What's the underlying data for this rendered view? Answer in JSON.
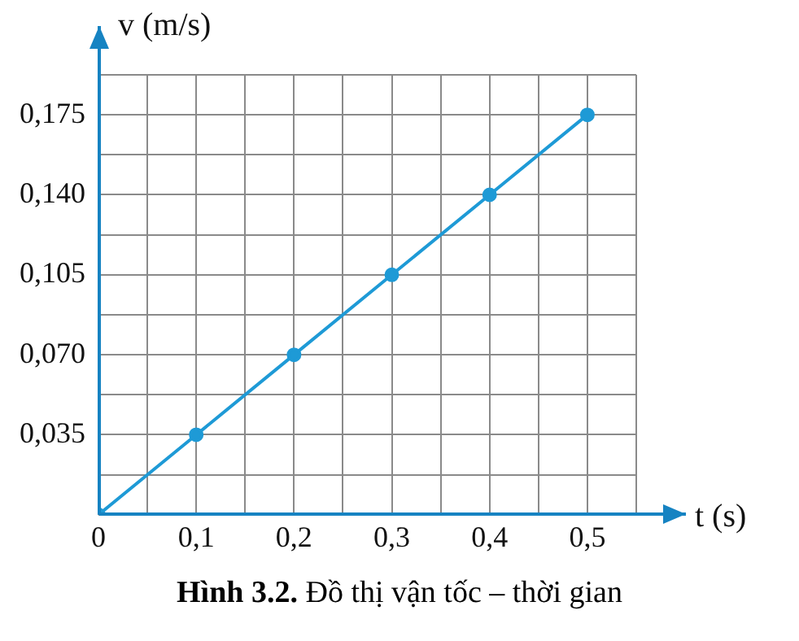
{
  "chart_data": {
    "type": "line",
    "title": "Hình 3.2. Đồ thị vận tốc – thời gian",
    "xlabel": "t (s)",
    "ylabel": "v (m/s)",
    "x": [
      0,
      0.1,
      0.2,
      0.3,
      0.4,
      0.5
    ],
    "series": [
      {
        "color": "#1e9ad6",
        "values": [
          0,
          0.035,
          0.07,
          0.105,
          0.14,
          0.175
        ]
      }
    ],
    "xlim": [
      0,
      0.55
    ],
    "ylim": [
      0,
      0.1925
    ],
    "xticks": [
      0,
      {
        "value": 0.05,
        "label": null
      },
      {
        "value": 0.1,
        "label": "0,1"
      },
      {
        "value": 0.15,
        "label": null
      },
      {
        "value": 0.2,
        "label": "0,2"
      },
      {
        "value": 0.25,
        "label": null
      },
      {
        "value": 0.3,
        "label": "0,3"
      },
      {
        "value": 0.35,
        "label": null
      },
      {
        "value": 0.4,
        "label": "0,4"
      },
      {
        "value": 0.45,
        "label": null
      },
      {
        "value": 0.5,
        "label": "0,5"
      },
      {
        "value": 0.55,
        "label": null
      }
    ],
    "yticks": [
      {
        "value": 0,
        "label": null
      },
      {
        "value": 0.0175,
        "label": null
      },
      {
        "value": 0.035,
        "label": "0,035"
      },
      {
        "value": 0.0525,
        "label": null
      },
      {
        "value": 0.07,
        "label": "0,070"
      },
      {
        "value": 0.0875,
        "label": null
      },
      {
        "value": 0.105,
        "label": "0,105"
      },
      {
        "value": 0.1225,
        "label": null
      },
      {
        "value": 0.14,
        "label": "0,140"
      },
      {
        "value": 0.1575,
        "label": null
      },
      {
        "value": 0.175,
        "label": "0,175"
      },
      {
        "value": 0.1925,
        "label": null
      }
    ],
    "grid": true,
    "marker": "circle",
    "line_style": "solid",
    "legend": false
  }
}
